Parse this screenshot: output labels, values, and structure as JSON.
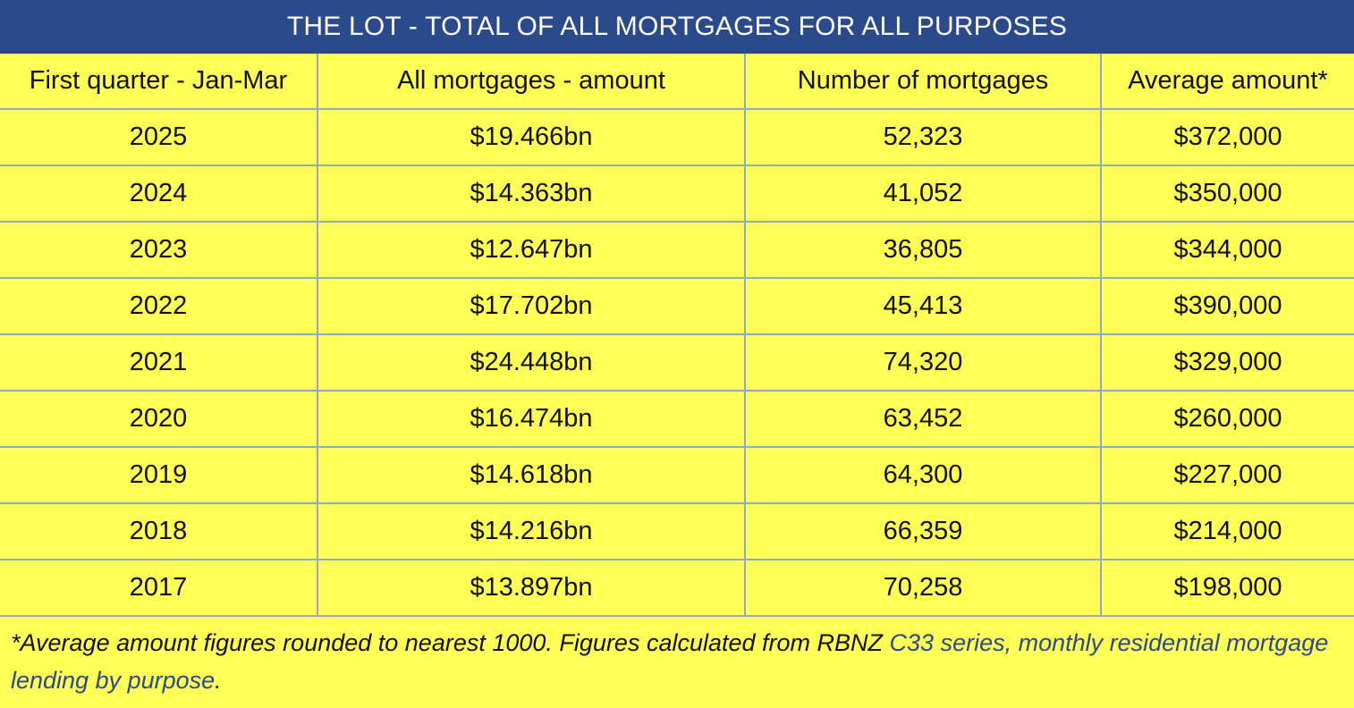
{
  "title": "THE LOT - TOTAL OF ALL MORTGAGES FOR ALL PURPOSES",
  "columns": [
    "First quarter - Jan-Mar",
    "All mortgages - amount",
    "Number of mortgages",
    "Average amount*"
  ],
  "rows": [
    [
      "2025",
      "$19.466bn",
      "52,323",
      "$372,000"
    ],
    [
      "2024",
      "$14.363bn",
      "41,052",
      "$350,000"
    ],
    [
      "2023",
      "$12.647bn",
      "36,805",
      "$344,000"
    ],
    [
      "2022",
      "$17.702bn",
      "45,413",
      "$390,000"
    ],
    [
      "2021",
      "$24.448bn",
      "74,320",
      "$329,000"
    ],
    [
      "2020",
      "$16.474bn",
      "63,452",
      "$260,000"
    ],
    [
      "2019",
      "$14.618bn",
      "64,300",
      "$227,000"
    ],
    [
      "2018",
      "$14.216bn",
      "66,359",
      "$214,000"
    ],
    [
      "2017",
      "$13.897bn",
      "70,258",
      "$198,000"
    ]
  ],
  "footnote": {
    "text": "*Average amount figures rounded to nearest 1000. Figures calculated from RBNZ ",
    "link": "C33 series, monthly residential mortgage lending by purpose",
    "end": "."
  },
  "colors": {
    "header_bg": "#2a4a8c",
    "table_bg": "#ffff55",
    "link": "#2a4a8c"
  }
}
